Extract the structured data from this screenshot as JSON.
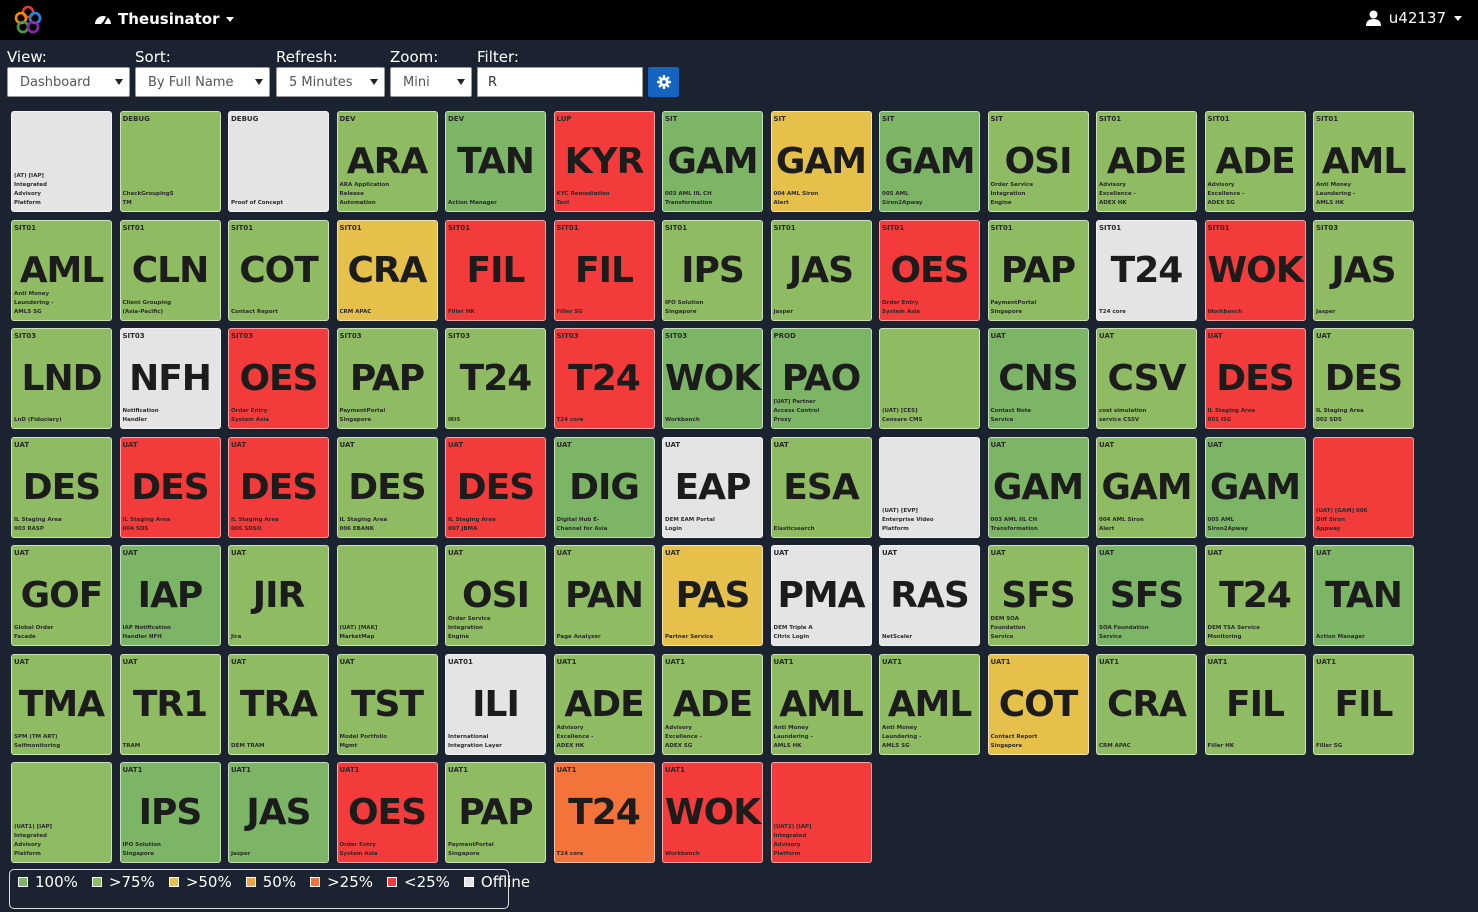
{
  "app": {
    "title": "Theusinator",
    "user": "u42137"
  },
  "controls": {
    "view_label": "View:",
    "view_value": "Dashboard",
    "sort_label": "Sort:",
    "sort_value": "By Full Name",
    "refresh_label": "Refresh:",
    "refresh_value": "5 Minutes",
    "zoom_label": "Zoom:",
    "zoom_value": "Mini",
    "filter_label": "Filter:",
    "filter_value": "R"
  },
  "colors": {
    "g100": "#7db567",
    "g75": "#8fbc62",
    "y50": "#e5c14b",
    "o50": "#f2a23c",
    "o25": "#f4733a",
    "red": "#f43b3b",
    "off": "#e4e4e4"
  },
  "tiles": [
    {
      "env": "",
      "abbr": "",
      "desc": "(AT) [IAP]\nIntegrated\nAdvisory\nPlatform",
      "c": "off"
    },
    {
      "env": "DEBUG",
      "abbr": "",
      "desc": "CheckGroupingS\nTM",
      "c": "g75"
    },
    {
      "env": "DEBUG",
      "abbr": "",
      "desc": "Proof of Concept",
      "c": "off"
    },
    {
      "env": "DEV",
      "abbr": "ARA",
      "desc": "ARA Application\nRelease\nAutomation",
      "c": "g75"
    },
    {
      "env": "DEV",
      "abbr": "TAN",
      "desc": "Action Manager",
      "c": "g100"
    },
    {
      "env": "LUP",
      "abbr": "KYR",
      "desc": "KYC Remediation\nTool",
      "c": "red"
    },
    {
      "env": "SIT",
      "abbr": "GAM",
      "desc": "003 AML IIL CH\nTransformation",
      "c": "g100"
    },
    {
      "env": "SIT",
      "abbr": "GAM",
      "desc": "004 AML Siron\nAlert",
      "c": "y50"
    },
    {
      "env": "SIT",
      "abbr": "GAM",
      "desc": "005 AML\nSiron2Apway",
      "c": "g100"
    },
    {
      "env": "SIT",
      "abbr": "OSI",
      "desc": "Order Service\nIntegration\nEngine",
      "c": "g75"
    },
    {
      "env": "SIT01",
      "abbr": "ADE",
      "desc": "Advisory\nExcellence -\nADEX HK",
      "c": "g75"
    },
    {
      "env": "SIT01",
      "abbr": "ADE",
      "desc": "Advisory\nExcellence -\nADEX SG",
      "c": "g75"
    },
    {
      "env": "SIT01",
      "abbr": "AML",
      "desc": "Anti Money\nLaundering -\nAMLS HK",
      "c": "g75"
    },
    {
      "env": "SIT01",
      "abbr": "AML",
      "desc": "Anti Money\nLaundering -\nAMLS SG",
      "c": "g75"
    },
    {
      "env": "SIT01",
      "abbr": "CLN",
      "desc": "Client Grouping\n(Asia-Pacific)",
      "c": "g75"
    },
    {
      "env": "SIT01",
      "abbr": "COT",
      "desc": "Contact Report",
      "c": "g75"
    },
    {
      "env": "SIT01",
      "abbr": "CRA",
      "desc": "CRM APAC",
      "c": "y50"
    },
    {
      "env": "SIT01",
      "abbr": "FIL",
      "desc": "Filler HK",
      "c": "red"
    },
    {
      "env": "SIT01",
      "abbr": "FIL",
      "desc": "Filler SG",
      "c": "red"
    },
    {
      "env": "SIT01",
      "abbr": "IPS",
      "desc": "IPO Solution\nSingapore",
      "c": "g75"
    },
    {
      "env": "SIT01",
      "abbr": "JAS",
      "desc": "Jasper",
      "c": "g75"
    },
    {
      "env": "SIT01",
      "abbr": "OES",
      "desc": "Order Entry\nSystem Asia",
      "c": "red"
    },
    {
      "env": "SIT01",
      "abbr": "PAP",
      "desc": "PaymentPortal\nSingapore",
      "c": "g75"
    },
    {
      "env": "SIT01",
      "abbr": "T24",
      "desc": "T24 core",
      "c": "off"
    },
    {
      "env": "SIT01",
      "abbr": "WOK",
      "desc": "Workbench",
      "c": "red"
    },
    {
      "env": "SIT03",
      "abbr": "JAS",
      "desc": "Jasper",
      "c": "g75"
    },
    {
      "env": "SIT03",
      "abbr": "LND",
      "desc": "LnD (Fiduciary)",
      "c": "g75"
    },
    {
      "env": "SIT03",
      "abbr": "NFH",
      "desc": "Notification\nHandler",
      "c": "off"
    },
    {
      "env": "SIT03",
      "abbr": "OES",
      "desc": "Order Entry\nSystem Asia",
      "c": "red"
    },
    {
      "env": "SIT03",
      "abbr": "PAP",
      "desc": "PaymentPortal\nSingapore",
      "c": "g75"
    },
    {
      "env": "SIT03",
      "abbr": "T24",
      "desc": "IRIS",
      "c": "g75"
    },
    {
      "env": "SIT03",
      "abbr": "T24",
      "desc": "T24 core",
      "c": "red"
    },
    {
      "env": "SIT03",
      "abbr": "WOK",
      "desc": "Workbench",
      "c": "g100"
    },
    {
      "env": "PROD",
      "abbr": "PAO",
      "desc": "[UAT] Partner\nAccess Control\nProxy",
      "c": "g100"
    },
    {
      "env": "",
      "abbr": "",
      "desc": "(UAT) [CES]\nCensare CMS",
      "c": "g75"
    },
    {
      "env": "UAT",
      "abbr": "CNS",
      "desc": "Contact Note\nService",
      "c": "g100"
    },
    {
      "env": "UAT",
      "abbr": "CSV",
      "desc": "cost simulation\nservice CSSV",
      "c": "g75"
    },
    {
      "env": "UAT",
      "abbr": "DES",
      "desc": "IL Staging Area\n001 ISG",
      "c": "red"
    },
    {
      "env": "UAT",
      "abbr": "DES",
      "desc": "IL Staging Area\n002 SDS",
      "c": "g75"
    },
    {
      "env": "UAT",
      "abbr": "DES",
      "desc": "IL Staging Area\n003 RASP",
      "c": "g75"
    },
    {
      "env": "UAT",
      "abbr": "DES",
      "desc": "IL Staging Area\n004 SDS",
      "c": "red"
    },
    {
      "env": "UAT",
      "abbr": "DES",
      "desc": "IL Staging Area\n005 SDSO",
      "c": "red"
    },
    {
      "env": "UAT",
      "abbr": "DES",
      "desc": "IL Staging Area\n006 EBANK",
      "c": "g75"
    },
    {
      "env": "UAT",
      "abbr": "DES",
      "desc": "IL Staging Area\n007 JBMA",
      "c": "red"
    },
    {
      "env": "UAT",
      "abbr": "DIG",
      "desc": "Digital Hub E-\nChannel for Asia",
      "c": "g100"
    },
    {
      "env": "UAT",
      "abbr": "EAP",
      "desc": "DEM EAM Portal\nLogin",
      "c": "off"
    },
    {
      "env": "UAT",
      "abbr": "ESA",
      "desc": "Elasticsearch",
      "c": "g75"
    },
    {
      "env": "",
      "abbr": "",
      "desc": "(UAT) [EVP]\nEnterprise Video\nPlatform",
      "c": "off"
    },
    {
      "env": "UAT",
      "abbr": "GAM",
      "desc": "003 AML IIL CH\nTransformation",
      "c": "g100"
    },
    {
      "env": "UAT",
      "abbr": "GAM",
      "desc": "004 AML Siron\nAlert",
      "c": "g75"
    },
    {
      "env": "UAT",
      "abbr": "GAM",
      "desc": "005 AML\nSiron2Apway",
      "c": "g100"
    },
    {
      "env": "",
      "abbr": "",
      "desc": "(UAT) [GAM] 006\nDiff Siron\nAppway",
      "c": "red"
    },
    {
      "env": "UAT",
      "abbr": "GOF",
      "desc": "Global Order\nFacade",
      "c": "g75"
    },
    {
      "env": "UAT",
      "abbr": "IAP",
      "desc": "IAP Notification\nHandler NFH",
      "c": "g100"
    },
    {
      "env": "UAT",
      "abbr": "JIR",
      "desc": "Jira",
      "c": "g75"
    },
    {
      "env": "",
      "abbr": "",
      "desc": "(UAT) [MAK]\nMarketMap",
      "c": "g75"
    },
    {
      "env": "UAT",
      "abbr": "OSI",
      "desc": "Order Service\nIntegration\nEngine",
      "c": "g75"
    },
    {
      "env": "UAT",
      "abbr": "PAN",
      "desc": "Page Analyzer",
      "c": "g75"
    },
    {
      "env": "UAT",
      "abbr": "PAS",
      "desc": "Partner Service",
      "c": "y50"
    },
    {
      "env": "UAT",
      "abbr": "PMA",
      "desc": "DEM Triple A\nCitrix Login",
      "c": "off"
    },
    {
      "env": "UAT",
      "abbr": "RAS",
      "desc": "NetScaler",
      "c": "off"
    },
    {
      "env": "UAT",
      "abbr": "SFS",
      "desc": "DEM SOA\nFoundation\nService",
      "c": "g75"
    },
    {
      "env": "UAT",
      "abbr": "SFS",
      "desc": "SOA Foundation\nService",
      "c": "g100"
    },
    {
      "env": "UAT",
      "abbr": "T24",
      "desc": "DEM TSA Service\nMonitoring",
      "c": "g75"
    },
    {
      "env": "UAT",
      "abbr": "TAN",
      "desc": "Action Manager",
      "c": "g100"
    },
    {
      "env": "UAT",
      "abbr": "TMA",
      "desc": "SPM (TM ART)\nSelfmonitoring",
      "c": "g75"
    },
    {
      "env": "UAT",
      "abbr": "TR1",
      "desc": "TRAM",
      "c": "g75"
    },
    {
      "env": "UAT",
      "abbr": "TRA",
      "desc": "DEM TRAM",
      "c": "g75"
    },
    {
      "env": "UAT",
      "abbr": "TST",
      "desc": "Model Portfolio\nMgmt",
      "c": "g75"
    },
    {
      "env": "UAT01",
      "abbr": "ILI",
      "desc": "International\nIntegration Layer",
      "c": "off"
    },
    {
      "env": "UAT1",
      "abbr": "ADE",
      "desc": "Advisory\nExcellence -\nADEX HK",
      "c": "g75"
    },
    {
      "env": "UAT1",
      "abbr": "ADE",
      "desc": "Advisory\nExcellence -\nADEX SG",
      "c": "g75"
    },
    {
      "env": "UAT1",
      "abbr": "AML",
      "desc": "Anti Money\nLaundering -\nAMLS HK",
      "c": "g75"
    },
    {
      "env": "UAT1",
      "abbr": "AML",
      "desc": "Anti Money\nLaundering -\nAMLS SG",
      "c": "g75"
    },
    {
      "env": "UAT1",
      "abbr": "COT",
      "desc": "Contact Report\nSingapore",
      "c": "y50"
    },
    {
      "env": "UAT1",
      "abbr": "CRA",
      "desc": "CRM APAC",
      "c": "g75"
    },
    {
      "env": "UAT1",
      "abbr": "FIL",
      "desc": "Filler HK",
      "c": "g75"
    },
    {
      "env": "UAT1",
      "abbr": "FIL",
      "desc": "Filler SG",
      "c": "g75"
    },
    {
      "env": "",
      "abbr": "",
      "desc": "(UAT1) [IAP]\nIntegrated\nAdvisory\nPlatform",
      "c": "g75"
    },
    {
      "env": "UAT1",
      "abbr": "IPS",
      "desc": "IPO Solution\nSingapore",
      "c": "g100"
    },
    {
      "env": "UAT1",
      "abbr": "JAS",
      "desc": "Jasper",
      "c": "g100"
    },
    {
      "env": "UAT1",
      "abbr": "OES",
      "desc": "Order Entry\nSystem Asia",
      "c": "red"
    },
    {
      "env": "UAT1",
      "abbr": "PAP",
      "desc": "PaymentPortal\nSingapore",
      "c": "g75"
    },
    {
      "env": "UAT1",
      "abbr": "T24",
      "desc": "T24 core",
      "c": "o25"
    },
    {
      "env": "UAT1",
      "abbr": "WOK",
      "desc": "Workbench",
      "c": "red"
    },
    {
      "env": "",
      "abbr": "",
      "desc": "(UAT2) [IAP]\nIntegrated\nAdvisory\nPlatform",
      "c": "red"
    }
  ],
  "legend": [
    {
      "label": "100%",
      "c": "g100"
    },
    {
      "label": ">75%",
      "c": "g75"
    },
    {
      "label": ">50%",
      "c": "y50"
    },
    {
      "label": "50%",
      "c": "o50"
    },
    {
      "label": ">25%",
      "c": "o25"
    },
    {
      "label": "<25%",
      "c": "red"
    },
    {
      "label": "Offline",
      "c": "off"
    }
  ]
}
